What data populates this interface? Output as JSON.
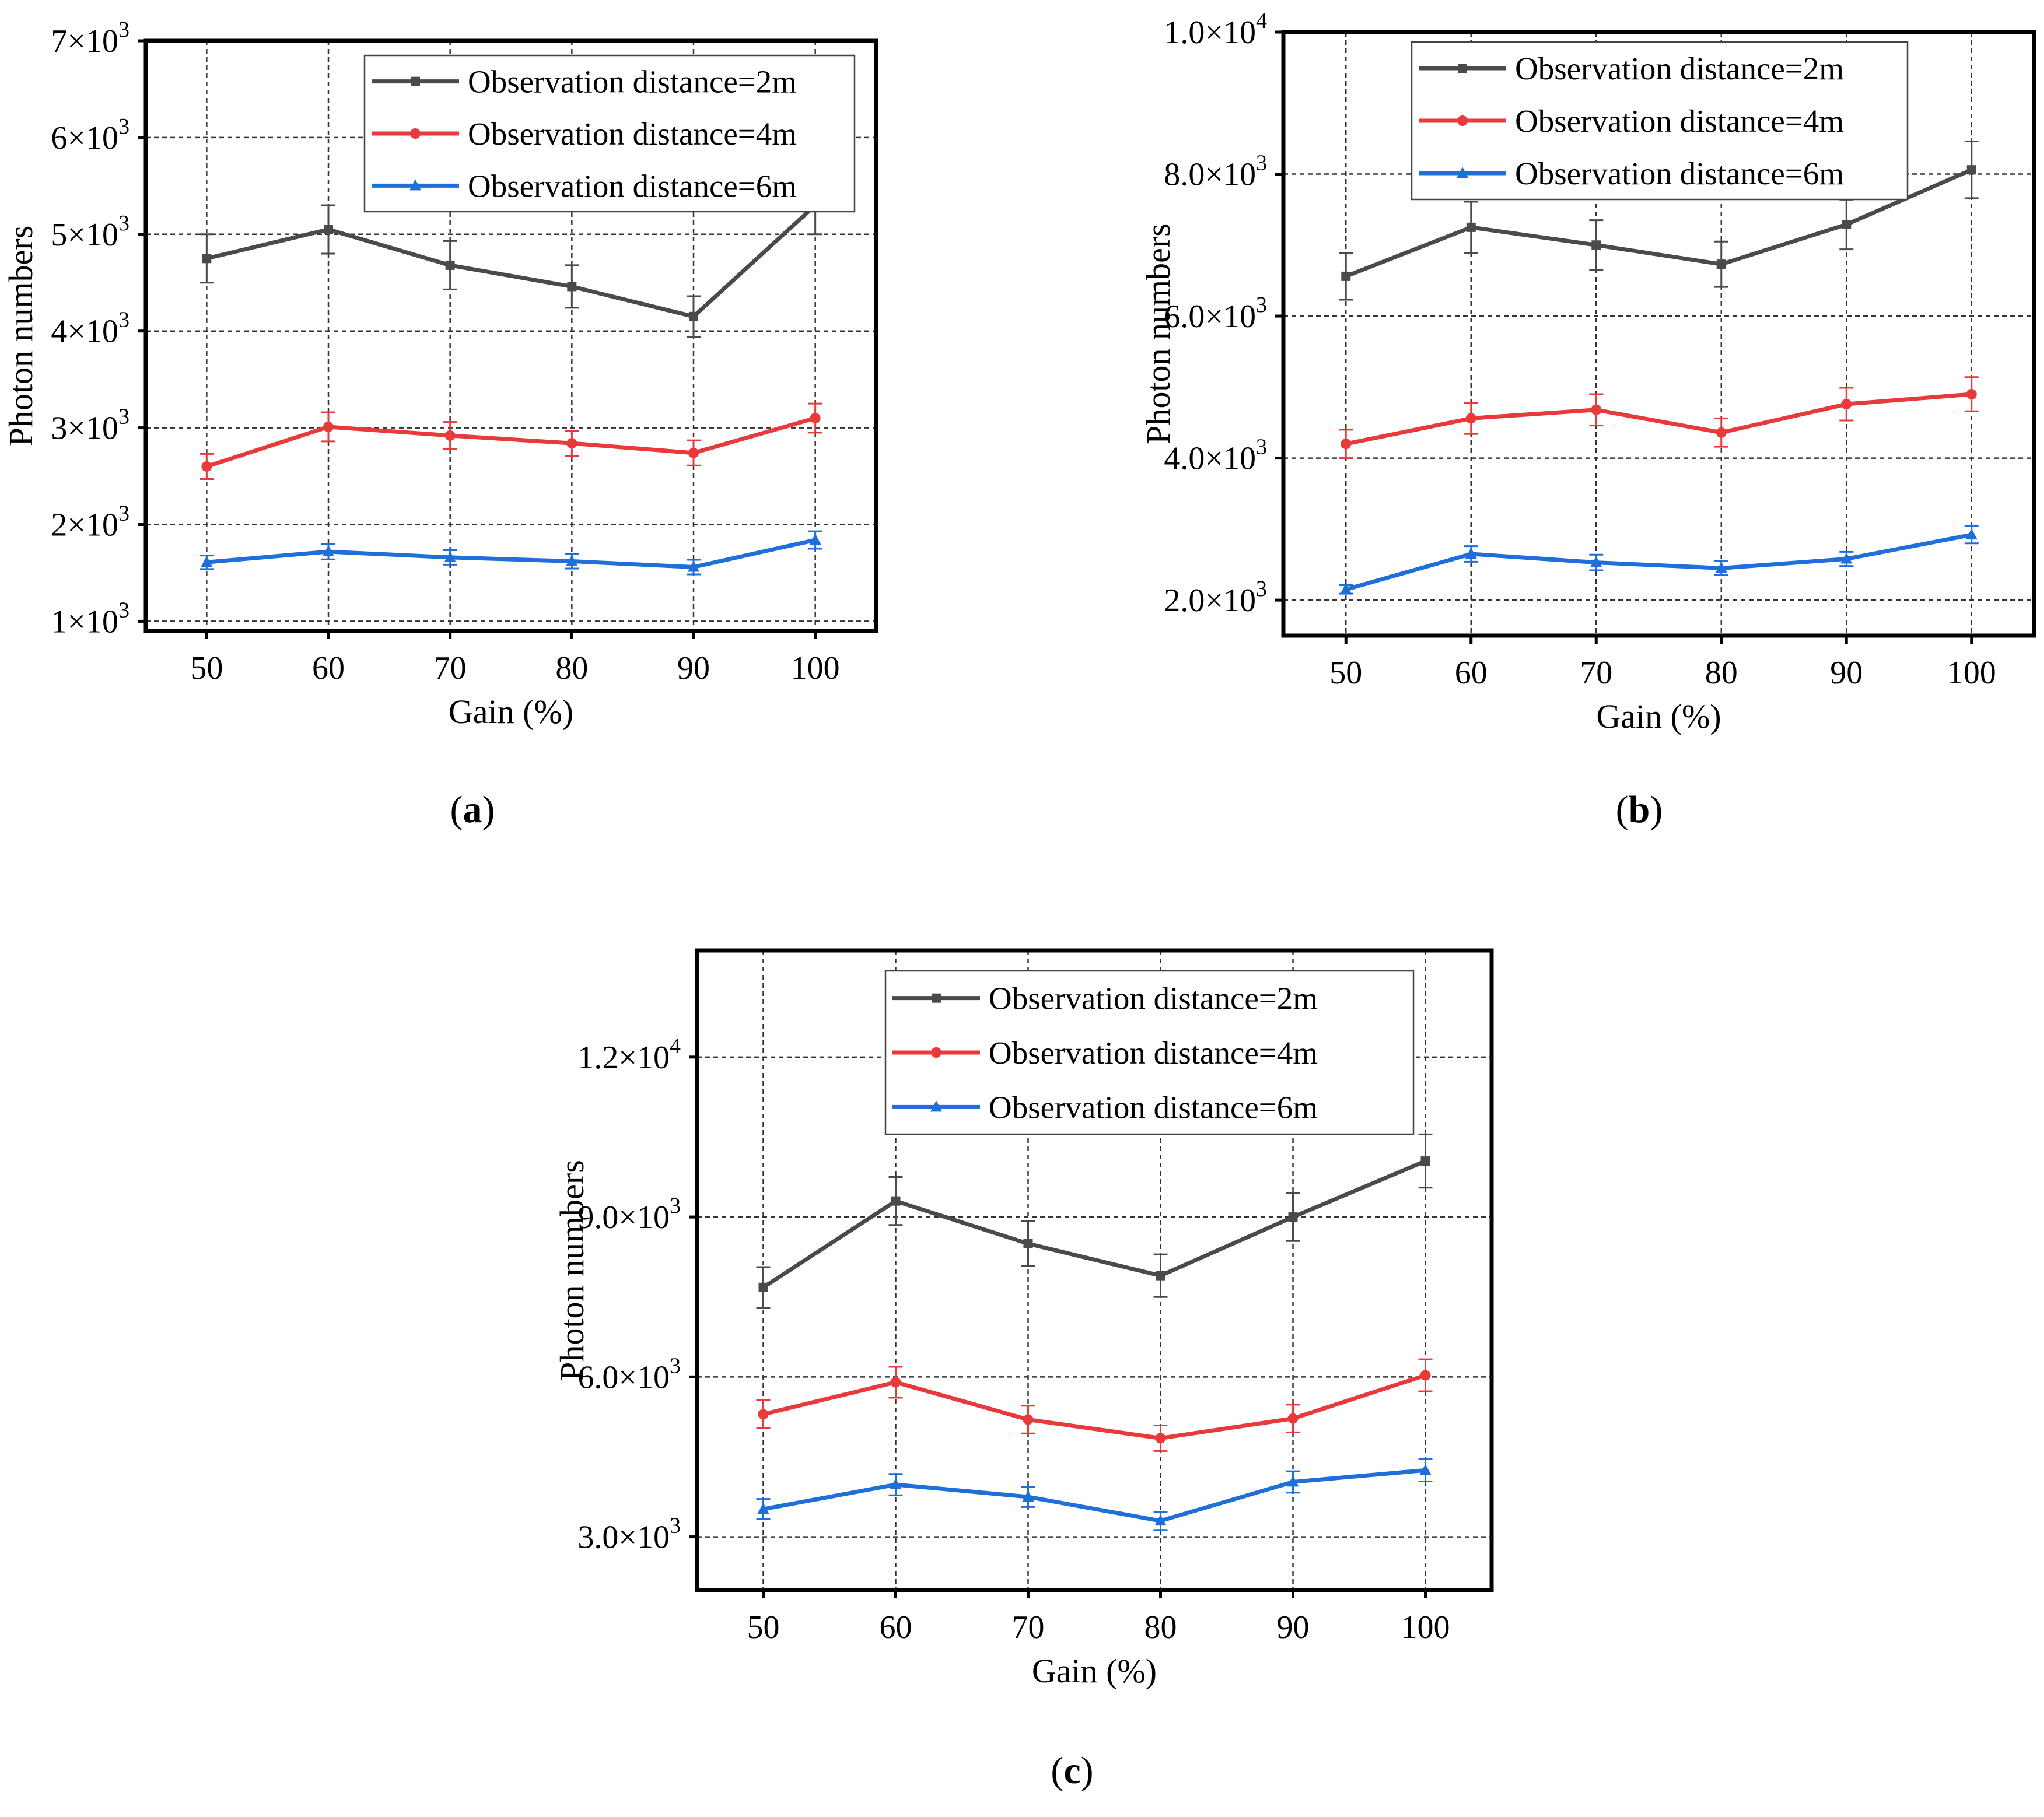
{
  "chart_data": [
    {
      "id": "a",
      "type": "line",
      "panel_label": "a",
      "xlabel": "Gain (%)",
      "ylabel": "Photon numbers",
      "x": [
        50,
        60,
        70,
        80,
        90,
        100
      ],
      "xticks": [
        "50",
        "60",
        "70",
        "80",
        "90",
        "100"
      ],
      "xlim": [
        45,
        105
      ],
      "ylim": [
        900,
        7000
      ],
      "yticks": [
        {
          "value": 1000,
          "mantissa": "1",
          "exponent": "3"
        },
        {
          "value": 2000,
          "mantissa": "2",
          "exponent": "3"
        },
        {
          "value": 3000,
          "mantissa": "3",
          "exponent": "3"
        },
        {
          "value": 4000,
          "mantissa": "4",
          "exponent": "3"
        },
        {
          "value": 5000,
          "mantissa": "5",
          "exponent": "3"
        },
        {
          "value": 6000,
          "mantissa": "6",
          "exponent": "3"
        },
        {
          "value": 7000,
          "mantissa": "7",
          "exponent": "3"
        }
      ],
      "grid": true,
      "legend_position": "top-right",
      "series": [
        {
          "name": "Observation distance=2m",
          "color": "#4a4a4a",
          "marker": "square",
          "values": [
            4750,
            5050,
            4680,
            4460,
            4150,
            5300
          ],
          "errors": [
            250,
            250,
            250,
            220,
            210,
            300
          ]
        },
        {
          "name": "Observation distance=4m",
          "color": "#e8393b",
          "marker": "circle",
          "values": [
            2600,
            3010,
            2920,
            2840,
            2740,
            3100
          ],
          "errors": [
            130,
            150,
            140,
            130,
            130,
            150
          ]
        },
        {
          "name": "Observation distance=6m",
          "color": "#1e6fd9",
          "marker": "triangle",
          "values": [
            1610,
            1720,
            1660,
            1620,
            1560,
            1840
          ],
          "errors": [
            70,
            80,
            75,
            75,
            75,
            90
          ]
        }
      ]
    },
    {
      "id": "b",
      "type": "line",
      "panel_label": "b",
      "xlabel": "Gain (%)",
      "ylabel": "Photon numbers",
      "x": [
        50,
        60,
        70,
        80,
        90,
        100
      ],
      "xticks": [
        "50",
        "60",
        "70",
        "80",
        "90",
        "100"
      ],
      "xlim": [
        45,
        105
      ],
      "ylim": [
        1500,
        10000
      ],
      "yticks": [
        {
          "value": 2000,
          "mantissa": "2.0",
          "exponent": "3"
        },
        {
          "value": 4000,
          "mantissa": "4.0",
          "exponent": "3"
        },
        {
          "value": 6000,
          "mantissa": "6.0",
          "exponent": "3"
        },
        {
          "value": 8000,
          "mantissa": "8.0",
          "exponent": "3"
        },
        {
          "value": 10000,
          "mantissa": "1.0",
          "exponent": "4"
        }
      ],
      "grid": true,
      "legend_position": "top-right",
      "series": [
        {
          "name": "Observation distance=2m",
          "color": "#4a4a4a",
          "marker": "square",
          "values": [
            6560,
            7250,
            7000,
            6730,
            7290,
            8060
          ],
          "errors": [
            330,
            360,
            350,
            320,
            350,
            400
          ]
        },
        {
          "name": "Observation distance=4m",
          "color": "#e8393b",
          "marker": "circle",
          "values": [
            4200,
            4560,
            4680,
            4360,
            4760,
            4900
          ],
          "errors": [
            200,
            220,
            220,
            200,
            230,
            240
          ]
        },
        {
          "name": "Observation distance=6m",
          "color": "#1e6fd9",
          "marker": "triangle",
          "values": [
            2150,
            2650,
            2530,
            2450,
            2580,
            2920
          ],
          "errors": [
            60,
            110,
            110,
            100,
            100,
            120
          ]
        }
      ]
    },
    {
      "id": "c",
      "type": "line",
      "panel_label": "c",
      "xlabel": "Gain (%)",
      "ylabel": "Photon numbers",
      "x": [
        50,
        60,
        70,
        80,
        90,
        100
      ],
      "xticks": [
        "50",
        "60",
        "70",
        "80",
        "90",
        "100"
      ],
      "xlim": [
        45,
        105
      ],
      "ylim": [
        2000,
        14000
      ],
      "yticks": [
        {
          "value": 3000,
          "mantissa": "3.0",
          "exponent": "3"
        },
        {
          "value": 6000,
          "mantissa": "6.0",
          "exponent": "3"
        },
        {
          "value": 9000,
          "mantissa": "9.0",
          "exponent": "3"
        },
        {
          "value": 12000,
          "mantissa": "1.2",
          "exponent": "4"
        }
      ],
      "grid": true,
      "legend_position": "top-right",
      "series": [
        {
          "name": "Observation distance=2m",
          "color": "#4a4a4a",
          "marker": "square",
          "values": [
            7680,
            9300,
            8500,
            7900,
            9000,
            10050
          ],
          "errors": [
            380,
            450,
            420,
            400,
            450,
            500
          ]
        },
        {
          "name": "Observation distance=4m",
          "color": "#e8393b",
          "marker": "circle",
          "values": [
            5300,
            5900,
            5200,
            4850,
            5220,
            6030
          ],
          "errors": [
            260,
            290,
            260,
            240,
            260,
            300
          ]
        },
        {
          "name": "Observation distance=6m",
          "color": "#1e6fd9",
          "marker": "triangle",
          "values": [
            3520,
            3980,
            3750,
            3300,
            4030,
            4250
          ],
          "errors": [
            190,
            200,
            190,
            170,
            200,
            210
          ]
        }
      ]
    }
  ]
}
